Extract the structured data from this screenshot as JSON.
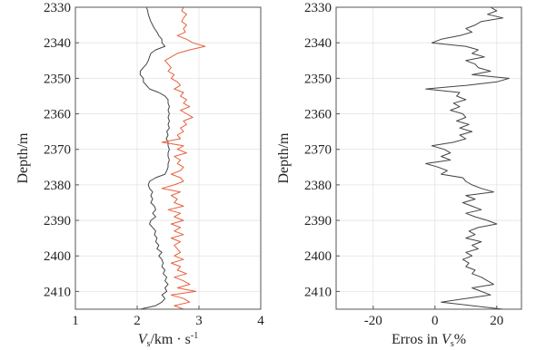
{
  "chart_data": [
    {
      "type": "line",
      "title": "",
      "ylabel": "Depth/m",
      "xlabel_parts": {
        "v": "V",
        "s": "s",
        "unit": "/km · s",
        "exp": "-1"
      },
      "xlim": [
        1,
        4
      ],
      "ylim": [
        2330,
        2415
      ],
      "y_inverted": true,
      "grid": true,
      "xticks": [
        1,
        2,
        3,
        4
      ],
      "xtick_labels": [
        "1",
        "2",
        "3",
        "4"
      ],
      "yticks": [
        2330,
        2340,
        2350,
        2360,
        2370,
        2380,
        2390,
        2400,
        2410
      ],
      "ytick_labels": [
        "2330",
        "2340",
        "2350",
        "2360",
        "2370",
        "2380",
        "2390",
        "2400",
        "2410"
      ],
      "series": [
        {
          "color": "#444444",
          "points": [
            [
              2.15,
              2330
            ],
            [
              2.17,
              2331
            ],
            [
              2.18,
              2332
            ],
            [
              2.2,
              2333
            ],
            [
              2.22,
              2334
            ],
            [
              2.25,
              2335
            ],
            [
              2.28,
              2336
            ],
            [
              2.32,
              2337
            ],
            [
              2.35,
              2338
            ],
            [
              2.4,
              2339
            ],
            [
              2.4,
              2340
            ],
            [
              2.45,
              2341
            ],
            [
              2.3,
              2342
            ],
            [
              2.22,
              2343
            ],
            [
              2.2,
              2344
            ],
            [
              2.18,
              2345
            ],
            [
              2.15,
              2346
            ],
            [
              2.1,
              2347
            ],
            [
              2.05,
              2348
            ],
            [
              2.05,
              2349
            ],
            [
              2.1,
              2350
            ],
            [
              2.1,
              2351
            ],
            [
              2.15,
              2352
            ],
            [
              2.2,
              2353
            ],
            [
              2.35,
              2354
            ],
            [
              2.45,
              2355
            ],
            [
              2.5,
              2356
            ],
            [
              2.5,
              2357
            ],
            [
              2.52,
              2358
            ],
            [
              2.5,
              2359
            ],
            [
              2.52,
              2360
            ],
            [
              2.5,
              2361
            ],
            [
              2.52,
              2362
            ],
            [
              2.5,
              2363
            ],
            [
              2.52,
              2364
            ],
            [
              2.48,
              2365
            ],
            [
              2.5,
              2366
            ],
            [
              2.47,
              2367
            ],
            [
              2.5,
              2368
            ],
            [
              2.5,
              2369
            ],
            [
              2.52,
              2370
            ],
            [
              2.5,
              2371
            ],
            [
              2.5,
              2372
            ],
            [
              2.52,
              2373
            ],
            [
              2.5,
              2374
            ],
            [
              2.5,
              2375
            ],
            [
              2.48,
              2376
            ],
            [
              2.45,
              2377
            ],
            [
              2.3,
              2378
            ],
            [
              2.2,
              2379
            ],
            [
              2.18,
              2380
            ],
            [
              2.2,
              2381
            ],
            [
              2.25,
              2382
            ],
            [
              2.22,
              2383
            ],
            [
              2.25,
              2384
            ],
            [
              2.22,
              2385
            ],
            [
              2.28,
              2386
            ],
            [
              2.3,
              2387
            ],
            [
              2.25,
              2388
            ],
            [
              2.3,
              2389
            ],
            [
              2.22,
              2390
            ],
            [
              2.2,
              2391
            ],
            [
              2.25,
              2392
            ],
            [
              2.3,
              2393
            ],
            [
              2.28,
              2394
            ],
            [
              2.32,
              2395
            ],
            [
              2.3,
              2396
            ],
            [
              2.35,
              2397
            ],
            [
              2.32,
              2398
            ],
            [
              2.4,
              2399
            ],
            [
              2.35,
              2400
            ],
            [
              2.4,
              2401
            ],
            [
              2.42,
              2402
            ],
            [
              2.4,
              2403
            ],
            [
              2.45,
              2404
            ],
            [
              2.42,
              2405
            ],
            [
              2.48,
              2406
            ],
            [
              2.45,
              2407
            ],
            [
              2.5,
              2408
            ],
            [
              2.45,
              2409
            ],
            [
              2.48,
              2410
            ],
            [
              2.4,
              2411
            ],
            [
              2.45,
              2412
            ],
            [
              2.4,
              2413
            ],
            [
              2.3,
              2414
            ],
            [
              2.05,
              2415
            ]
          ]
        },
        {
          "color": "#e8603c",
          "points": [
            [
              2.75,
              2330
            ],
            [
              2.72,
              2331
            ],
            [
              2.8,
              2332
            ],
            [
              2.75,
              2333
            ],
            [
              2.72,
              2334
            ],
            [
              2.8,
              2335
            ],
            [
              2.75,
              2336
            ],
            [
              2.78,
              2337
            ],
            [
              2.65,
              2338
            ],
            [
              2.8,
              2339
            ],
            [
              2.9,
              2340
            ],
            [
              3.1,
              2341
            ],
            [
              2.85,
              2342
            ],
            [
              2.65,
              2343
            ],
            [
              2.55,
              2344
            ],
            [
              2.45,
              2345
            ],
            [
              2.5,
              2346
            ],
            [
              2.55,
              2347
            ],
            [
              2.5,
              2348
            ],
            [
              2.6,
              2349
            ],
            [
              2.55,
              2350
            ],
            [
              2.65,
              2351
            ],
            [
              2.7,
              2352
            ],
            [
              2.6,
              2353
            ],
            [
              2.75,
              2354
            ],
            [
              2.7,
              2355
            ],
            [
              2.8,
              2356
            ],
            [
              2.75,
              2357
            ],
            [
              2.85,
              2358
            ],
            [
              2.7,
              2359
            ],
            [
              2.8,
              2360
            ],
            [
              2.9,
              2361
            ],
            [
              2.75,
              2362
            ],
            [
              2.8,
              2363
            ],
            [
              2.7,
              2364
            ],
            [
              2.75,
              2365
            ],
            [
              2.65,
              2366
            ],
            [
              2.7,
              2367
            ],
            [
              2.4,
              2368
            ],
            [
              2.75,
              2369
            ],
            [
              2.65,
              2370
            ],
            [
              2.8,
              2371
            ],
            [
              2.6,
              2372
            ],
            [
              2.7,
              2373
            ],
            [
              2.65,
              2374
            ],
            [
              2.75,
              2375
            ],
            [
              2.7,
              2376
            ],
            [
              2.55,
              2377
            ],
            [
              2.7,
              2378
            ],
            [
              2.75,
              2379
            ],
            [
              2.6,
              2380
            ],
            [
              2.4,
              2381
            ],
            [
              2.7,
              2382
            ],
            [
              2.55,
              2383
            ],
            [
              2.65,
              2384
            ],
            [
              2.6,
              2385
            ],
            [
              2.75,
              2386
            ],
            [
              2.5,
              2387
            ],
            [
              2.7,
              2388
            ],
            [
              2.6,
              2389
            ],
            [
              2.75,
              2390
            ],
            [
              2.55,
              2391
            ],
            [
              2.7,
              2392
            ],
            [
              2.6,
              2393
            ],
            [
              2.75,
              2394
            ],
            [
              2.55,
              2395
            ],
            [
              2.7,
              2396
            ],
            [
              2.6,
              2397
            ],
            [
              2.65,
              2398
            ],
            [
              2.7,
              2399
            ],
            [
              2.6,
              2400
            ],
            [
              2.75,
              2401
            ],
            [
              2.55,
              2402
            ],
            [
              2.7,
              2403
            ],
            [
              2.65,
              2404
            ],
            [
              2.8,
              2405
            ],
            [
              2.6,
              2406
            ],
            [
              2.75,
              2407
            ],
            [
              2.85,
              2408
            ],
            [
              2.65,
              2409
            ],
            [
              2.95,
              2410
            ],
            [
              2.55,
              2411
            ],
            [
              2.75,
              2412
            ],
            [
              2.85,
              2413
            ],
            [
              2.6,
              2414
            ],
            [
              2.75,
              2415
            ]
          ]
        }
      ]
    },
    {
      "type": "line",
      "title": "",
      "ylabel": "Depth/m",
      "xlabel_parts": {
        "prefix": "Erros in ",
        "v": "V",
        "s": "s",
        "suffix": "%"
      },
      "xlim": [
        -32,
        28
      ],
      "ylim": [
        2330,
        2415
      ],
      "y_inverted": true,
      "grid": true,
      "xticks": [
        -20,
        0,
        20
      ],
      "xtick_labels": [
        "-20",
        "0",
        "20"
      ],
      "yticks": [
        2330,
        2340,
        2350,
        2360,
        2370,
        2380,
        2390,
        2400,
        2410
      ],
      "ytick_labels": [
        "2330",
        "2340",
        "2350",
        "2360",
        "2370",
        "2380",
        "2390",
        "2400",
        "2410"
      ],
      "series": [
        {
          "color": "#444444",
          "points": [
            [
              18,
              2330
            ],
            [
              20,
              2331
            ],
            [
              17,
              2332
            ],
            [
              22,
              2333
            ],
            [
              15,
              2334
            ],
            [
              13,
              2335
            ],
            [
              10,
              2336
            ],
            [
              12,
              2337
            ],
            [
              8,
              2338
            ],
            [
              2,
              2339
            ],
            [
              -1,
              2340
            ],
            [
              10,
              2341
            ],
            [
              14,
              2342
            ],
            [
              12,
              2343
            ],
            [
              16,
              2344
            ],
            [
              10,
              2345
            ],
            [
              13,
              2346
            ],
            [
              14,
              2347
            ],
            [
              18,
              2348
            ],
            [
              12,
              2349
            ],
            [
              24,
              2350
            ],
            [
              20,
              2351
            ],
            [
              10,
              2352
            ],
            [
              -3,
              2353
            ],
            [
              8,
              2354
            ],
            [
              7,
              2355
            ],
            [
              10,
              2356
            ],
            [
              6,
              2357
            ],
            [
              8,
              2358
            ],
            [
              5,
              2359
            ],
            [
              9,
              2360
            ],
            [
              10,
              2361
            ],
            [
              7,
              2362
            ],
            [
              11,
              2363
            ],
            [
              8,
              2364
            ],
            [
              12,
              2365
            ],
            [
              8,
              2366
            ],
            [
              10,
              2367
            ],
            [
              6,
              2368
            ],
            [
              -1,
              2369
            ],
            [
              3,
              2370
            ],
            [
              5,
              2371
            ],
            [
              2,
              2372
            ],
            [
              5,
              2373
            ],
            [
              -3,
              2374
            ],
            [
              1,
              2375
            ],
            [
              4,
              2376
            ],
            [
              2,
              2377
            ],
            [
              9,
              2378
            ],
            [
              10,
              2379
            ],
            [
              12,
              2380
            ],
            [
              15,
              2381
            ],
            [
              19,
              2382
            ],
            [
              10,
              2383
            ],
            [
              13,
              2384
            ],
            [
              9,
              2385
            ],
            [
              12,
              2386
            ],
            [
              15,
              2387
            ],
            [
              10,
              2388
            ],
            [
              13,
              2389
            ],
            [
              17,
              2390
            ],
            [
              20,
              2391
            ],
            [
              14,
              2392
            ],
            [
              11,
              2393
            ],
            [
              13,
              2394
            ],
            [
              10,
              2395
            ],
            [
              15,
              2396
            ],
            [
              12,
              2397
            ],
            [
              14,
              2398
            ],
            [
              10,
              2399
            ],
            [
              12,
              2400
            ],
            [
              9,
              2401
            ],
            [
              11,
              2402
            ],
            [
              10,
              2403
            ],
            [
              13,
              2404
            ],
            [
              12,
              2405
            ],
            [
              15,
              2406
            ],
            [
              17,
              2407
            ],
            [
              19,
              2408
            ],
            [
              12,
              2409
            ],
            [
              15,
              2410
            ],
            [
              18,
              2411
            ],
            [
              10,
              2412
            ],
            [
              2,
              2413
            ],
            [
              12,
              2414
            ],
            [
              22,
              2415
            ]
          ]
        }
      ]
    }
  ]
}
